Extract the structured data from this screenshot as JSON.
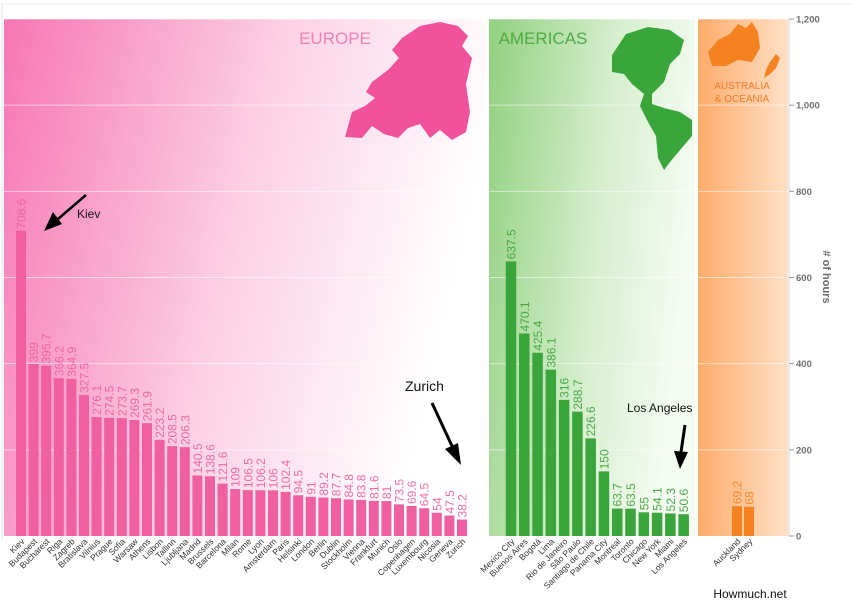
{
  "chart_data": {
    "type": "bar",
    "ylabel": "# of hours",
    "ylim": [
      0,
      1200
    ],
    "yticks": [
      "0",
      "200",
      "400",
      "600",
      "800",
      "1,000",
      "1,200"
    ],
    "grid": true,
    "regions": [
      {
        "name": "EUROPE",
        "color": "#f05fa0",
        "categories": [
          "Kiev",
          "Budapest",
          "Bucharest",
          "Riga",
          "Zagreb",
          "Bratislava",
          "Vilnius",
          "Prague",
          "Sofia",
          "Warsaw",
          "Athens",
          "Lisbon",
          "Tallinn",
          "Ljubljana",
          "Madrid",
          "Brussels",
          "Barcelona",
          "Milan",
          "Rome",
          "Lyon",
          "Amsterdam",
          "Paris",
          "Helsinki",
          "London",
          "Berlin",
          "Dublin",
          "Stockholm",
          "Vienna",
          "Frankfurt",
          "Munich",
          "Oslo",
          "Copenhagen",
          "Luxembourg",
          "Nicosia",
          "Geneva",
          "Zurich"
        ],
        "values": [
          708.6,
          399,
          395.7,
          366.2,
          364.9,
          327.5,
          276.1,
          274.5,
          273.7,
          269.3,
          261.9,
          223.2,
          208.5,
          206.3,
          140.5,
          138.6,
          121.6,
          109,
          106.5,
          106.2,
          106,
          102.4,
          94.5,
          91,
          89.2,
          87.7,
          84.8,
          83.8,
          81.6,
          81,
          73.5,
          69.6,
          64.5,
          54,
          47.5,
          38.2
        ],
        "value_labels": [
          "708.6",
          "399",
          "395.7",
          "366.2",
          "364.9",
          "327.5",
          "276.1",
          "274.5",
          "273.7",
          "269.3",
          "261.9",
          "223.2",
          "208.5",
          "206.3",
          "140.5",
          "138.6",
          "121.6",
          "109",
          "106.5",
          "106.2",
          "106",
          "102.4",
          "94.5",
          "91",
          "89.2",
          "87.7",
          "84.8",
          "83.8",
          "81.6",
          "81",
          "73.5",
          "69.6",
          "64.5",
          "54",
          "47.5",
          "38.2"
        ]
      },
      {
        "name": "AMERICAS",
        "color": "#3aa53a",
        "categories": [
          "Mexico City",
          "Buenos Aires",
          "Bogotá",
          "Lima",
          "Rio de Janeiro",
          "São Paulo",
          "Santiago de Chile",
          "Panama City",
          "Montreal",
          "Toronto",
          "Chicago",
          "New York",
          "Miami",
          "Los Angeles"
        ],
        "values": [
          637.5,
          470.1,
          425.4,
          386.1,
          316,
          288.7,
          226.6,
          150,
          63.7,
          63.5,
          55,
          54.1,
          52.3,
          50.6
        ],
        "value_labels": [
          "637.5",
          "470.1",
          "425.4",
          "386.1",
          "316",
          "288.7",
          "226.6",
          "150",
          "63.7",
          "63.5",
          "55",
          "54.1",
          "52.3",
          "50.6"
        ]
      },
      {
        "name": "AUSTRALIA & OCEANIA",
        "color": "#f58220",
        "categories": [
          "Auckland",
          "Sydney"
        ],
        "values": [
          69.2,
          68
        ],
        "value_labels": [
          "69.2",
          "68"
        ]
      }
    ],
    "annotations": [
      "Kiev",
      "Zurich",
      "Los Angeles"
    ],
    "source": "Howmuch.net"
  },
  "region_titles": {
    "europe": "EUROPE",
    "americas": "AMERICAS",
    "oceania_line1": "AUSTRALIA",
    "oceania_line2": "& OCEANIA"
  }
}
